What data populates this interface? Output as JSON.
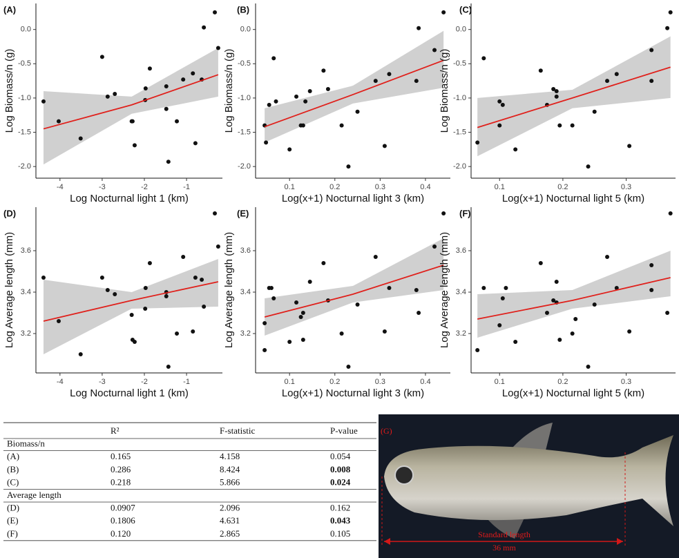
{
  "chart_data": [
    {
      "type": "scatter",
      "panel_label": "(A)",
      "xlabel": "Log Nocturnal light 1 (km)",
      "ylabel": "Log Biomass/n (g)",
      "x": [
        -4.39,
        -4.03,
        -3.51,
        -3.0,
        -2.87,
        -2.7,
        -2.3,
        -2.28,
        -2.23,
        -1.98,
        -1.97,
        -1.87,
        -1.48,
        -1.48,
        -1.43,
        -1.23,
        -1.08,
        -0.85,
        -0.79,
        -0.64,
        -0.59,
        -0.33,
        -0.25
      ],
      "values": [
        -1.05,
        -1.34,
        -1.59,
        -0.4,
        -0.98,
        -0.94,
        -1.34,
        -1.34,
        -1.69,
        -1.03,
        -0.86,
        -0.57,
        -0.83,
        -1.16,
        -1.93,
        -1.34,
        -0.73,
        -0.64,
        -1.66,
        -0.73,
        0.03,
        0.25,
        -0.27
      ],
      "color": "#111111",
      "fit": {
        "x": [
          -4.39,
          -2.3,
          -0.25
        ],
        "values": [
          -1.45,
          -1.1,
          -0.66
        ],
        "lower": [
          -1.97,
          -1.23,
          -0.98
        ],
        "upper": [
          -0.9,
          -0.98,
          -0.27
        ],
        "color": "#e0201b",
        "band_color": "#d0d0d0"
      },
      "xlim": [
        -4.57,
        -0.15
      ],
      "ylim": [
        -2.17,
        0.38
      ],
      "xticks": [
        -4,
        -3,
        -2,
        -1
      ],
      "yticks": [
        {
          "value": -2,
          "label": "-2.0"
        },
        -1.5,
        {
          "value": -1,
          "label": "-1.0"
        },
        -0.5,
        {
          "value": 0,
          "label": "0.0"
        }
      ]
    },
    {
      "type": "scatter",
      "panel_label": "(B)",
      "xlabel": "Log(x+1) Nocturnal light 3 (km)",
      "ylabel": "Log Biomass/n (g)",
      "x": [
        0.045,
        0.048,
        0.055,
        0.065,
        0.07,
        0.1,
        0.115,
        0.125,
        0.13,
        0.135,
        0.145,
        0.175,
        0.185,
        0.215,
        0.23,
        0.25,
        0.29,
        0.31,
        0.32,
        0.38,
        0.385,
        0.42,
        0.44
      ],
      "values": [
        -1.4,
        -1.65,
        -1.1,
        -0.42,
        -1.05,
        -1.75,
        -0.98,
        -1.4,
        -1.4,
        -1.05,
        -0.9,
        -0.6,
        -0.87,
        -1.4,
        -2.0,
        -1.2,
        -0.75,
        -1.7,
        -0.65,
        -0.75,
        0.02,
        -0.3,
        0.25
      ],
      "color": "#111111",
      "fit": {
        "x": [
          0.045,
          0.24,
          0.44
        ],
        "values": [
          -1.42,
          -0.95,
          -0.45
        ],
        "lower": [
          -1.65,
          -1.08,
          -0.85
        ],
        "upper": [
          -1.15,
          -0.82,
          -0.02
        ],
        "color": "#e0201b",
        "band_color": "#d0d0d0"
      },
      "xlim": [
        0.025,
        0.455
      ],
      "ylim": [
        -2.17,
        0.38
      ],
      "xticks": [
        0.1,
        0.2,
        0.3,
        0.4
      ],
      "yticks": [
        {
          "value": -2,
          "label": "-2.0"
        },
        -1.5,
        {
          "value": -1,
          "label": "-1.0"
        },
        -0.5,
        {
          "value": 0,
          "label": "0.0"
        }
      ]
    },
    {
      "type": "scatter",
      "panel_label": "(C)",
      "xlabel": "Log(x+1) Nocturnal light 5 (km)",
      "ylabel": "Log Biomass/n (g)",
      "x": [
        0.065,
        0.075,
        0.1,
        0.1,
        0.105,
        0.125,
        0.165,
        0.175,
        0.185,
        0.19,
        0.19,
        0.195,
        0.215,
        0.24,
        0.25,
        0.27,
        0.285,
        0.305,
        0.34,
        0.34,
        0.365,
        0.37
      ],
      "values": [
        -1.65,
        -0.42,
        -1.05,
        -1.4,
        -1.1,
        -1.75,
        -0.6,
        -1.1,
        -0.87,
        -0.9,
        -0.98,
        -1.4,
        -1.4,
        -2.0,
        -1.2,
        -0.75,
        -0.65,
        -1.7,
        -0.3,
        -0.75,
        0.02,
        0.25
      ],
      "color": "#111111",
      "fit": {
        "x": [
          0.065,
          0.215,
          0.37
        ],
        "values": [
          -1.43,
          -1.0,
          -0.55
        ],
        "lower": [
          -1.85,
          -1.15,
          -1.0
        ],
        "upper": [
          -1.0,
          -0.88,
          -0.1
        ],
        "color": "#e0201b",
        "band_color": "#d0d0d0"
      },
      "xlim": [
        0.055,
        0.378
      ],
      "ylim": [
        -2.17,
        0.38
      ],
      "xticks": [
        0.1,
        0.2,
        0.3
      ],
      "yticks": [
        {
          "value": -2,
          "label": "-2.0"
        },
        -1.5,
        {
          "value": -1,
          "label": "-1.0"
        },
        -0.5,
        {
          "value": 0,
          "label": "0.0"
        }
      ]
    },
    {
      "type": "scatter",
      "panel_label": "(D)",
      "xlabel": "Log Nocturnal light 1 (km)",
      "ylabel": "Log Average length (mm)",
      "x": [
        -4.39,
        -4.03,
        -3.51,
        -3.0,
        -2.87,
        -2.7,
        -2.3,
        -2.28,
        -2.23,
        -1.98,
        -1.97,
        -1.87,
        -1.48,
        -1.48,
        -1.43,
        -1.23,
        -1.08,
        -0.85,
        -0.79,
        -0.64,
        -0.59,
        -0.33,
        -0.25
      ],
      "values": [
        3.47,
        3.26,
        3.1,
        3.47,
        3.41,
        3.39,
        3.29,
        3.17,
        3.16,
        3.32,
        3.42,
        3.54,
        3.38,
        3.4,
        3.04,
        3.2,
        3.57,
        3.21,
        3.47,
        3.46,
        3.33,
        3.78,
        3.62
      ],
      "color": "#111111",
      "fit": {
        "x": [
          -4.39,
          -2.3,
          -0.25
        ],
        "values": [
          3.26,
          3.36,
          3.45
        ],
        "lower": [
          3.1,
          3.32,
          3.33
        ],
        "upper": [
          3.46,
          3.4,
          3.56
        ],
        "color": "#e0201b",
        "band_color": "#d0d0d0"
      },
      "xlim": [
        -4.57,
        -0.15
      ],
      "ylim": [
        3.01,
        3.81
      ],
      "xticks": [
        -4,
        -3,
        -2,
        -1
      ],
      "yticks": [
        3.2,
        3.4,
        3.6
      ]
    },
    {
      "type": "scatter",
      "panel_label": "(E)",
      "xlabel": "Log(x+1) Nocturnal light 3 (km)",
      "ylabel": "Log Average length (mm)",
      "x": [
        0.045,
        0.045,
        0.055,
        0.06,
        0.065,
        0.1,
        0.115,
        0.125,
        0.13,
        0.13,
        0.145,
        0.175,
        0.185,
        0.215,
        0.23,
        0.25,
        0.29,
        0.31,
        0.32,
        0.38,
        0.385,
        0.42,
        0.44
      ],
      "values": [
        3.25,
        3.12,
        3.42,
        3.42,
        3.37,
        3.16,
        3.35,
        3.28,
        3.17,
        3.3,
        3.45,
        3.54,
        3.36,
        3.2,
        3.04,
        3.34,
        3.57,
        3.21,
        3.42,
        3.41,
        3.3,
        3.62,
        3.78
      ],
      "color": "#111111",
      "fit": {
        "x": [
          0.045,
          0.24,
          0.44
        ],
        "values": [
          3.28,
          3.39,
          3.53
        ],
        "lower": [
          3.19,
          3.35,
          3.41
        ],
        "upper": [
          3.37,
          3.43,
          3.66
        ],
        "color": "#e0201b",
        "band_color": "#d0d0d0"
      },
      "xlim": [
        0.025,
        0.455
      ],
      "ylim": [
        3.01,
        3.81
      ],
      "xticks": [
        0.1,
        0.2,
        0.3,
        0.4
      ],
      "yticks": [
        3.2,
        3.4,
        3.6
      ]
    },
    {
      "type": "scatter",
      "panel_label": "(F)",
      "xlabel": "Log(x+1) Nocturnal light 5 (km)",
      "ylabel": "Log Average length (mm)",
      "x": [
        0.065,
        0.075,
        0.1,
        0.105,
        0.11,
        0.125,
        0.165,
        0.175,
        0.185,
        0.19,
        0.19,
        0.195,
        0.215,
        0.22,
        0.24,
        0.25,
        0.27,
        0.285,
        0.305,
        0.34,
        0.34,
        0.365,
        0.37
      ],
      "values": [
        3.12,
        3.42,
        3.24,
        3.37,
        3.42,
        3.16,
        3.54,
        3.3,
        3.36,
        3.35,
        3.45,
        3.17,
        3.2,
        3.27,
        3.04,
        3.34,
        3.57,
        3.42,
        3.21,
        3.41,
        3.53,
        3.3,
        3.78
      ],
      "color": "#111111",
      "fit": {
        "x": [
          0.065,
          0.215,
          0.37
        ],
        "values": [
          3.27,
          3.36,
          3.47
        ],
        "lower": [
          3.18,
          3.32,
          3.38
        ],
        "upper": [
          3.39,
          3.41,
          3.6
        ],
        "color": "#e0201b",
        "band_color": "#d0d0d0"
      },
      "xlim": [
        0.055,
        0.378
      ],
      "ylim": [
        3.01,
        3.81
      ],
      "xticks": [
        0.1,
        0.2,
        0.3
      ],
      "yticks": [
        3.2,
        3.4,
        3.6
      ]
    }
  ],
  "table": {
    "columns": [
      "R²",
      "F-statistic",
      "P-value"
    ],
    "groups": [
      {
        "name": "Biomass/n",
        "rows": [
          {
            "cells": [
              "(A)",
              "0.165",
              "4.158",
              "0.054"
            ],
            "bold": false
          },
          {
            "cells": [
              "(B)",
              "0.286",
              "8.424",
              "0.008"
            ],
            "bold": true
          },
          {
            "cells": [
              "(C)",
              "0.218",
              "5.866",
              "0.024"
            ],
            "bold": true
          }
        ]
      },
      {
        "name": "Average length",
        "rows": [
          {
            "cells": [
              "(D)",
              "0.0907",
              "2.096",
              "0.162"
            ],
            "bold": false
          },
          {
            "cells": [
              "(E)",
              "0.1806",
              "4.631",
              "0.043"
            ],
            "bold": true
          },
          {
            "cells": [
              "(F)",
              "0.120",
              "2.865",
              "0.105"
            ],
            "bold": false
          }
        ]
      }
    ]
  },
  "photo": {
    "panel_label": "(G)",
    "annotation": "Standard length",
    "measurement": "36 mm"
  }
}
